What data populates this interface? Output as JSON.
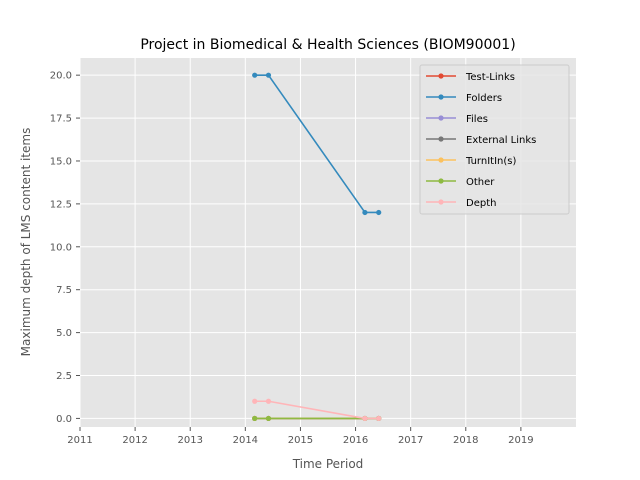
{
  "chart_data": {
    "type": "line",
    "title": "Project in Biomedical & Health Sciences (BIOM90001)",
    "xlabel": "Time Period",
    "ylabel": "Maximum depth of LMS content items",
    "xlim": [
      2011,
      2020
    ],
    "ylim": [
      -0.5,
      21
    ],
    "xticks": [
      2011,
      2012,
      2013,
      2014,
      2015,
      2016,
      2017,
      2018,
      2019
    ],
    "yticks": [
      0.0,
      2.5,
      5.0,
      7.5,
      10.0,
      12.5,
      15.0,
      17.5,
      20.0
    ],
    "xtick_labels": [
      "2011",
      "2012",
      "2013",
      "2014",
      "2015",
      "2016",
      "2017",
      "2018",
      "2019"
    ],
    "ytick_labels": [
      "0.0",
      "2.5",
      "5.0",
      "7.5",
      "10.0",
      "12.5",
      "15.0",
      "17.5",
      "20.0"
    ],
    "x": [
      2014.17,
      2014.42,
      2016.17,
      2016.42
    ],
    "grid": true,
    "legend_position": "top-right",
    "series": [
      {
        "name": "Test-Links",
        "color": "#E24A33",
        "values": [
          0,
          0,
          0,
          0
        ]
      },
      {
        "name": "Folders",
        "color": "#348ABD",
        "values": [
          20,
          20,
          12,
          12
        ]
      },
      {
        "name": "Files",
        "color": "#988ED5",
        "values": [
          0,
          0,
          0,
          0
        ]
      },
      {
        "name": "External Links",
        "color": "#777777",
        "values": [
          0,
          0,
          0,
          0
        ]
      },
      {
        "name": "TurnItIn(s)",
        "color": "#FBC15E",
        "values": [
          0,
          0,
          0,
          0
        ]
      },
      {
        "name": "Other",
        "color": "#8EBA42",
        "values": [
          0,
          0,
          0,
          0
        ]
      },
      {
        "name": "Depth",
        "color": "#FFB5B8",
        "values": [
          1,
          1,
          0,
          0
        ]
      }
    ]
  }
}
